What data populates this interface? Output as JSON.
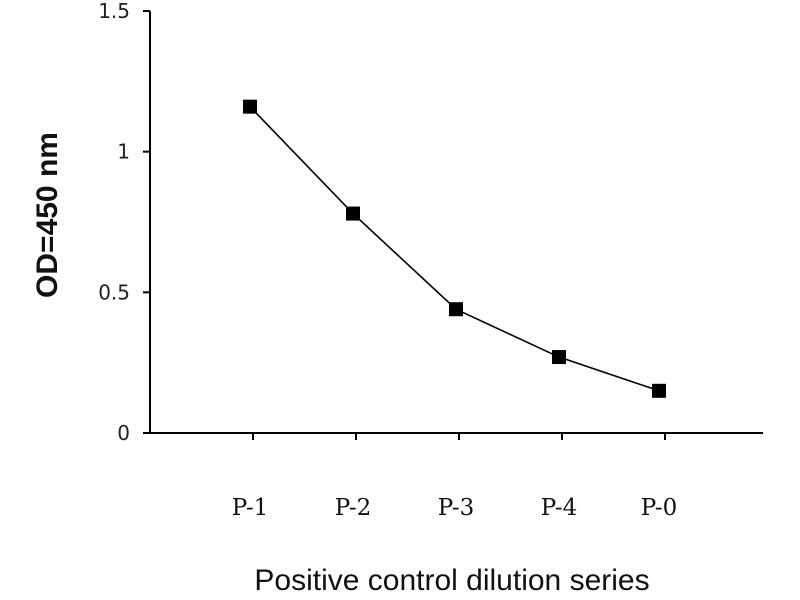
{
  "chart_data": {
    "type": "line",
    "title": "",
    "xlabel": "Positive control dilution series",
    "ylabel": "OD=450 nm",
    "categories": [
      "P-1",
      "P-2",
      "P-3",
      "P-4",
      "P-0"
    ],
    "series": [
      {
        "values": [
          1.16,
          0.78,
          0.44,
          0.27,
          0.15
        ]
      }
    ],
    "yticks": [
      "0",
      "0.5",
      "1",
      "1.5"
    ],
    "ylim": [
      0,
      1.5
    ],
    "grid": false,
    "legend": "none",
    "marker": "square",
    "line_color": "#000000",
    "marker_color": "#000000"
  }
}
